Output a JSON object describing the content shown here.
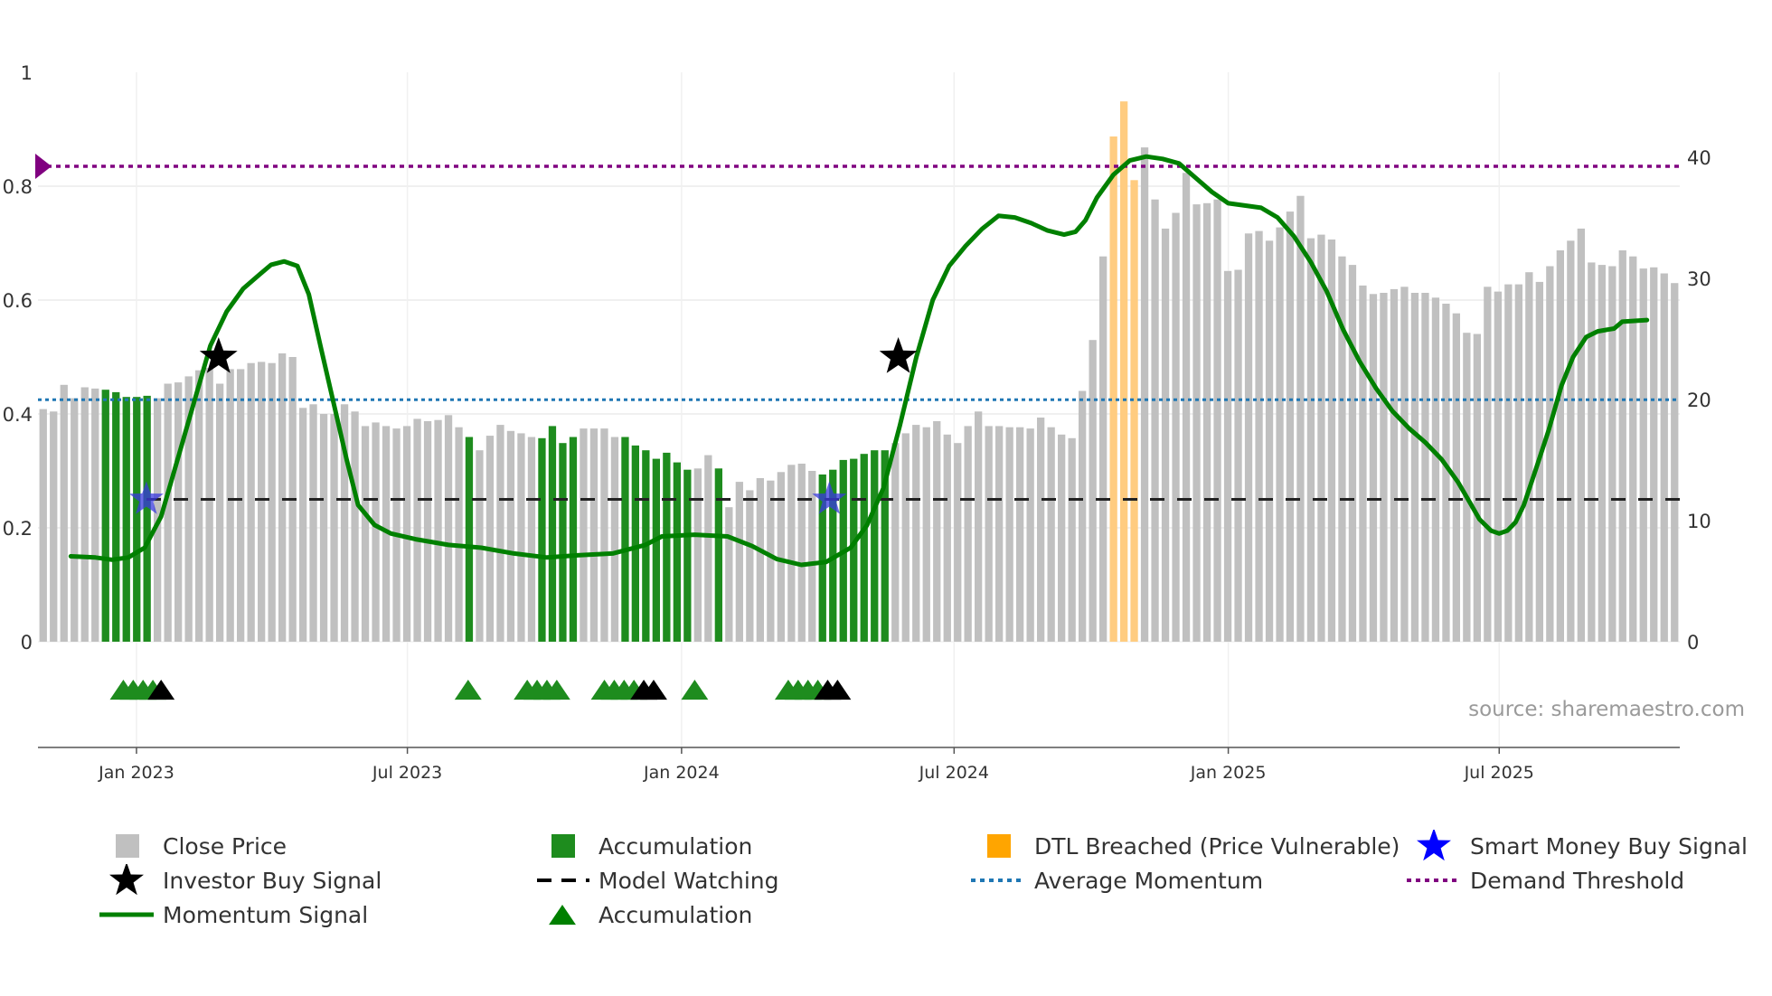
{
  "chart_data": {
    "type": "bar",
    "source": "source: sharemaestro.com",
    "x_ticks": [
      "Jan 2023",
      "Jul 2023",
      "Jan 2024",
      "Jul 2024",
      "Jan 2025",
      "Jul 2025"
    ],
    "left_axis": {
      "ylim": [
        0,
        1
      ],
      "ticks": [
        "0",
        "0.2",
        "0.4",
        "0.6",
        "0.8",
        "1"
      ]
    },
    "right_axis": {
      "ylim": [
        0,
        47
      ],
      "ticks": [
        "0",
        "10",
        "20",
        "30",
        "40"
      ]
    },
    "close_price": [
      19.2,
      19,
      21.2,
      20.1,
      21,
      20.9,
      20.8,
      20.6,
      20.2,
      20.2,
      20.3,
      20.1,
      21.3,
      21.4,
      21.9,
      22.4,
      22.6,
      21.3,
      22.5,
      22.5,
      23,
      23.1,
      23,
      23.8,
      23.5,
      19.3,
      19.6,
      18.8,
      18.8,
      19.6,
      19,
      17.8,
      18.1,
      17.8,
      17.6,
      17.8,
      18.4,
      18.2,
      18.3,
      18.7,
      17.7,
      16.9,
      15.8,
      17,
      17.9,
      17.4,
      17.2,
      16.9,
      16.8,
      17.8,
      16.4,
      16.9,
      17.6,
      17.6,
      17.6,
      16.9,
      16.9,
      16.2,
      15.8,
      15.1,
      15.6,
      14.8,
      14.2,
      14.3,
      15.4,
      14.3,
      11.1,
      13.2,
      12.5,
      13.5,
      13.3,
      14,
      14.6,
      14.7,
      14.1,
      13.8,
      14.2,
      15,
      15.1,
      15.5,
      15.8,
      15.8,
      16.4,
      17.2,
      17.9,
      17.7,
      18.2,
      17.1,
      16.4,
      17.8,
      19,
      17.8,
      17.8,
      17.7,
      17.7,
      17.6,
      18.5,
      17.7,
      17.1,
      16.8,
      20.7,
      24.9,
      31.8,
      41.7,
      44.6,
      38.1,
      40.8,
      36.5,
      34.1,
      35.4,
      38.7,
      36.1,
      36.2,
      36.5,
      30.6,
      30.7,
      33.7,
      33.9,
      33.1,
      34.2,
      35.5,
      36.8,
      33.3,
      33.6,
      33.2,
      31.8,
      31.1,
      29.4,
      28.7,
      28.8,
      29.1,
      29.3,
      28.8,
      28.8,
      28.4,
      27.9,
      27.1,
      25.5,
      25.4,
      29.3,
      28.9,
      29.5,
      29.5,
      30.5,
      29.7,
      31,
      32.3,
      33.1,
      34.1,
      31.3,
      31.1,
      31,
      32.3,
      31.8,
      30.8,
      30.9,
      30.4,
      29.6
    ],
    "bar_colors": {
      "default": "#c0c0c0",
      "accumulation": "#1e8c1e",
      "dtl": "#ffcc80",
      "accumulation_idx": [
        6,
        7,
        8,
        9,
        10,
        41,
        48,
        49,
        50,
        51,
        56,
        57,
        58,
        59,
        60,
        61,
        62,
        65,
        75,
        76,
        77,
        78,
        79,
        80,
        81
      ],
      "dtl_idx": [
        103,
        104,
        105
      ]
    },
    "momentum": [
      [
        0.02,
        0.15
      ],
      [
        0.035,
        0.148
      ],
      [
        0.045,
        0.144
      ],
      [
        0.055,
        0.148
      ],
      [
        0.065,
        0.165
      ],
      [
        0.075,
        0.22
      ],
      [
        0.085,
        0.32
      ],
      [
        0.095,
        0.42
      ],
      [
        0.105,
        0.52
      ],
      [
        0.115,
        0.58
      ],
      [
        0.125,
        0.62
      ],
      [
        0.135,
        0.645
      ],
      [
        0.142,
        0.662
      ],
      [
        0.15,
        0.668
      ],
      [
        0.158,
        0.66
      ],
      [
        0.165,
        0.61
      ],
      [
        0.172,
        0.52
      ],
      [
        0.18,
        0.42
      ],
      [
        0.188,
        0.32
      ],
      [
        0.195,
        0.24
      ],
      [
        0.205,
        0.205
      ],
      [
        0.215,
        0.19
      ],
      [
        0.23,
        0.18
      ],
      [
        0.25,
        0.17
      ],
      [
        0.27,
        0.165
      ],
      [
        0.29,
        0.155
      ],
      [
        0.31,
        0.148
      ],
      [
        0.33,
        0.152
      ],
      [
        0.35,
        0.155
      ],
      [
        0.37,
        0.17
      ],
      [
        0.38,
        0.185
      ],
      [
        0.4,
        0.188
      ],
      [
        0.42,
        0.185
      ],
      [
        0.435,
        0.168
      ],
      [
        0.45,
        0.145
      ],
      [
        0.465,
        0.135
      ],
      [
        0.48,
        0.14
      ],
      [
        0.495,
        0.165
      ],
      [
        0.505,
        0.205
      ],
      [
        0.515,
        0.27
      ],
      [
        0.525,
        0.38
      ],
      [
        0.535,
        0.5
      ],
      [
        0.545,
        0.6
      ],
      [
        0.555,
        0.66
      ],
      [
        0.565,
        0.695
      ],
      [
        0.575,
        0.725
      ],
      [
        0.585,
        0.748
      ],
      [
        0.595,
        0.745
      ],
      [
        0.605,
        0.735
      ],
      [
        0.615,
        0.722
      ],
      [
        0.625,
        0.715
      ],
      [
        0.632,
        0.72
      ],
      [
        0.638,
        0.74
      ],
      [
        0.645,
        0.78
      ],
      [
        0.655,
        0.82
      ],
      [
        0.665,
        0.845
      ],
      [
        0.675,
        0.852
      ],
      [
        0.685,
        0.848
      ],
      [
        0.695,
        0.84
      ],
      [
        0.705,
        0.815
      ],
      [
        0.715,
        0.79
      ],
      [
        0.725,
        0.77
      ],
      [
        0.735,
        0.766
      ],
      [
        0.745,
        0.762
      ],
      [
        0.755,
        0.745
      ],
      [
        0.765,
        0.712
      ],
      [
        0.775,
        0.668
      ],
      [
        0.785,
        0.615
      ],
      [
        0.795,
        0.548
      ],
      [
        0.805,
        0.492
      ],
      [
        0.815,
        0.445
      ],
      [
        0.825,
        0.405
      ],
      [
        0.835,
        0.375
      ],
      [
        0.845,
        0.35
      ],
      [
        0.855,
        0.32
      ],
      [
        0.865,
        0.28
      ],
      [
        0.872,
        0.245
      ],
      [
        0.878,
        0.215
      ],
      [
        0.885,
        0.195
      ],
      [
        0.89,
        0.19
      ],
      [
        0.895,
        0.195
      ],
      [
        0.9,
        0.21
      ],
      [
        0.905,
        0.24
      ],
      [
        0.912,
        0.3
      ],
      [
        0.92,
        0.37
      ],
      [
        0.928,
        0.45
      ],
      [
        0.935,
        0.5
      ],
      [
        0.943,
        0.535
      ],
      [
        0.95,
        0.545
      ],
      [
        0.96,
        0.55
      ],
      [
        0.965,
        0.562
      ],
      [
        0.98,
        0.565
      ]
    ],
    "momentum_fade_ranges": [
      [
        0.062,
        0.095
      ],
      [
        0.095,
        0.18
      ],
      [
        0.18,
        0.535
      ],
      [
        0.785,
        0.98
      ]
    ],
    "average_momentum": 0.425,
    "demand_threshold": 0.835,
    "model_watching": 0.25,
    "investor_buy_signals": [
      [
        0.11,
        0.5
      ],
      [
        0.524,
        0.5
      ]
    ],
    "smart_money_signals": [
      [
        0.066,
        0.25
      ],
      [
        0.482,
        0.25
      ]
    ],
    "accumulation_markers": [
      0.052,
      0.058,
      0.064,
      0.07,
      0.262,
      0.298,
      0.304,
      0.31,
      0.316,
      0.345,
      0.351,
      0.357,
      0.363,
      0.4,
      0.457,
      0.463,
      0.469,
      0.475
    ],
    "investor_markers": [
      0.075,
      0.369,
      0.375,
      0.481,
      0.487
    ],
    "legend": [
      {
        "label": "Close Price",
        "type": "square",
        "color": "#c0c0c0"
      },
      {
        "label": "Accumulation",
        "type": "square",
        "color": "#1e8c1e"
      },
      {
        "label": "DTL Breached (Price Vulnerable)",
        "type": "square",
        "color": "#ffa500"
      },
      {
        "label": "Smart Money Buy Signal",
        "type": "star",
        "color": "#0000ff"
      },
      {
        "label": "Investor Buy Signal",
        "type": "star",
        "color": "#000000"
      },
      {
        "label": "Model Watching",
        "type": "dash",
        "color": "#000000"
      },
      {
        "label": "Average Momentum",
        "type": "dot",
        "color": "#1f77b4"
      },
      {
        "label": "Demand Threshold",
        "type": "dot",
        "color": "#800080"
      },
      {
        "label": "Momentum Signal",
        "type": "line",
        "color": "#008000"
      },
      {
        "label": "Accumulation",
        "type": "triangle",
        "color": "#008000"
      }
    ]
  }
}
